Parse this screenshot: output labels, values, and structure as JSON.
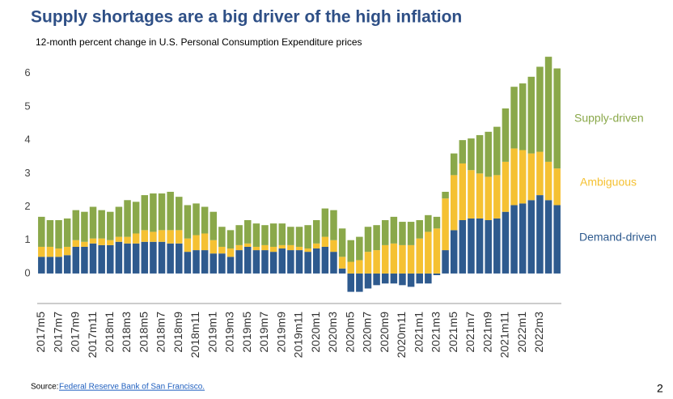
{
  "chart_data": {
    "type": "stacked_bar",
    "title": "Supply shortages are a big driver of the high inflation",
    "subtitle": "12-month percent change in U.S. Personal Consumption Expenditure prices",
    "categories": [
      "2017m5",
      null,
      "2017m7",
      null,
      "2017m9",
      null,
      "2017m11",
      null,
      "2018m1",
      null,
      "2018m3",
      null,
      "2018m5",
      null,
      "2018m7",
      null,
      "2018m9",
      null,
      "2018m11",
      null,
      "2019m1",
      null,
      "2019m3",
      null,
      "2019m5",
      null,
      "2019m7",
      null,
      "2019m9",
      null,
      "2019m11",
      null,
      "2020m1",
      null,
      "2020m3",
      null,
      "2020m5",
      null,
      "2020m7",
      null,
      "2020m9",
      null,
      "2020m11",
      null,
      "2021m1",
      null,
      "2021m3",
      null,
      "2021m5",
      null,
      "2021m7",
      null,
      "2021m9",
      null,
      "2021m11",
      null,
      "2022m1",
      null,
      "2022m3",
      null,
      null
    ],
    "series": [
      {
        "name": "Demand-driven",
        "color": "#2e5a8e",
        "values": [
          0.5,
          0.5,
          0.5,
          0.55,
          0.8,
          0.8,
          0.9,
          0.85,
          0.85,
          0.95,
          0.9,
          0.9,
          0.95,
          0.95,
          0.95,
          0.9,
          0.9,
          0.65,
          0.7,
          0.7,
          0.6,
          0.6,
          0.5,
          0.7,
          0.8,
          0.7,
          0.7,
          0.65,
          0.75,
          0.7,
          0.7,
          0.65,
          0.75,
          0.8,
          0.65,
          0.15,
          -0.55,
          -0.55,
          -0.45,
          -0.35,
          -0.3,
          -0.3,
          -0.35,
          -0.4,
          -0.3,
          -0.3,
          -0.05,
          0.7,
          1.3,
          1.6,
          1.65,
          1.65,
          1.6,
          1.65,
          1.85,
          2.05,
          2.1,
          2.2,
          2.35,
          2.2,
          2.05
        ]
      },
      {
        "name": "Ambiguous",
        "color": "#f5c132",
        "values": [
          0.3,
          0.3,
          0.25,
          0.25,
          0.2,
          0.15,
          0.15,
          0.2,
          0.15,
          0.15,
          0.2,
          0.3,
          0.35,
          0.3,
          0.35,
          0.4,
          0.4,
          0.4,
          0.45,
          0.5,
          0.4,
          0.2,
          0.25,
          0.15,
          0.1,
          0.1,
          0.15,
          0.15,
          0.1,
          0.15,
          0.1,
          0.1,
          0.15,
          0.3,
          0.35,
          0.35,
          0.35,
          0.4,
          0.65,
          0.7,
          0.85,
          0.9,
          0.85,
          0.85,
          1.05,
          1.25,
          1.35,
          1.55,
          1.65,
          1.7,
          1.45,
          1.35,
          1.3,
          1.3,
          1.5,
          1.7,
          1.6,
          1.4,
          1.3,
          1.15,
          1.1
        ]
      },
      {
        "name": "Supply-driven",
        "color": "#8aa84a",
        "values": [
          0.9,
          0.8,
          0.85,
          0.85,
          0.9,
          0.9,
          0.95,
          0.85,
          0.85,
          0.9,
          1.1,
          0.95,
          1.05,
          1.15,
          1.1,
          1.15,
          1.0,
          1.0,
          0.95,
          0.8,
          0.85,
          0.6,
          0.55,
          0.6,
          0.7,
          0.7,
          0.6,
          0.7,
          0.65,
          0.55,
          0.6,
          0.7,
          0.7,
          0.85,
          0.9,
          0.85,
          0.65,
          0.7,
          0.75,
          0.75,
          0.75,
          0.8,
          0.7,
          0.7,
          0.55,
          0.5,
          0.35,
          0.2,
          0.65,
          0.7,
          0.95,
          1.15,
          1.35,
          1.45,
          1.6,
          1.85,
          2.0,
          2.3,
          2.55,
          3.15,
          3.0
        ]
      }
    ],
    "ylim": [
      -0.9,
      6.6
    ],
    "yticks": [
      0,
      1,
      2,
      3,
      4,
      5,
      6
    ],
    "grid": false,
    "legend": "right"
  },
  "source_label": "Source:",
  "source_link": "Federal Reserve Bank of San Francisco.",
  "page_number": "2"
}
